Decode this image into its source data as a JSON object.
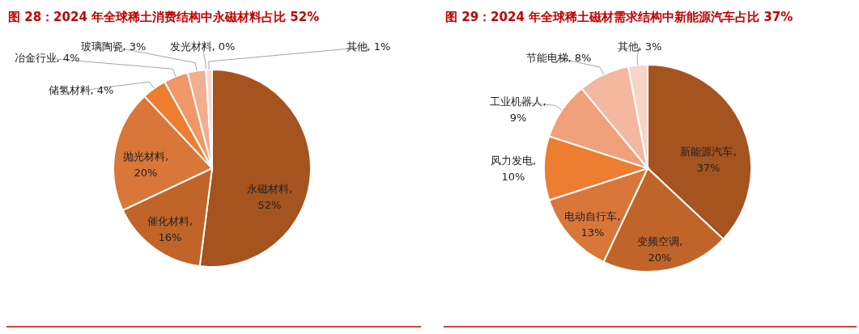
{
  "chart_data": [
    {
      "type": "pie",
      "title": "图 28：2024 年全球稀土消费结构中永磁材料占比 52%",
      "categories": [
        "永磁材料",
        "催化材料",
        "抛光材料",
        "储氢材料",
        "冶金行业",
        "玻璃陶瓷",
        "发光材料",
        "其他"
      ],
      "values": [
        52,
        16,
        20,
        4,
        4,
        3,
        0,
        1
      ],
      "colors": [
        "#a5531f",
        "#c0642a",
        "#d9773a",
        "#ed7d31",
        "#f0986a",
        "#f3ad8f",
        "#f6c4b0",
        "#f9d8cc"
      ],
      "value_labels": [
        ", 52%",
        ", 16%",
        ", 20%",
        ", 4%",
        ", 4%",
        ", 3%",
        ", 0%",
        ", 1%"
      ]
    },
    {
      "type": "pie",
      "title": "图 29：2024 年全球稀土磁材需求结构中新能源汽车占比 37%",
      "categories": [
        "新能源汽车",
        "变频空调",
        "电动自行车",
        "风力发电",
        "工业机器人",
        "节能电梯",
        "其他"
      ],
      "values": [
        37,
        20,
        13,
        10,
        9,
        8,
        3
      ],
      "colors": [
        "#a5531f",
        "#c0642a",
        "#d9773a",
        "#ed7d31",
        "#f0a07a",
        "#f4b8a0",
        "#f8d3c8"
      ],
      "value_labels": [
        ", 37%",
        ", 20%",
        ", 13%",
        ", 10%",
        ", 9%",
        ", 8%",
        ", 3%"
      ]
    }
  ]
}
